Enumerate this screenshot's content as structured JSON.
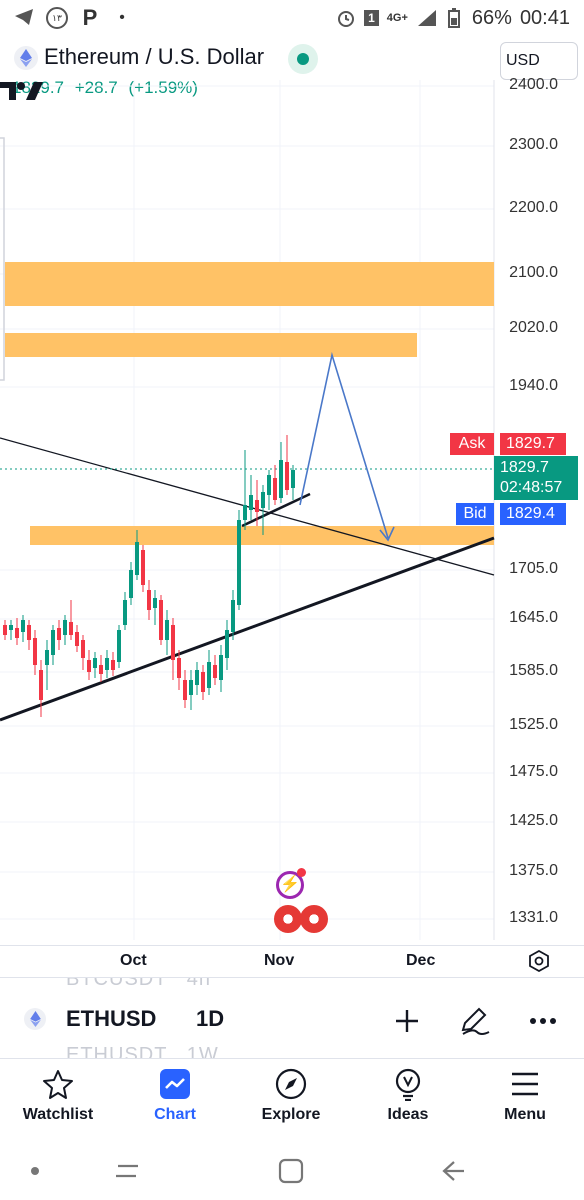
{
  "status_bar": {
    "left_icons": [
      "telegram-icon",
      "notification-icon",
      "p-icon",
      "dot-icon"
    ],
    "left_badge": "١٣",
    "right_icons": [
      "alarm-icon",
      "sim-icon",
      "network-icon",
      "signal-icon",
      "battery-icon"
    ],
    "sim_label": "1",
    "network_label": "4G+",
    "battery": "66%",
    "time": "00:41"
  },
  "header": {
    "title": "Ethereum / U.S. Dollar",
    "currency": "USD",
    "last_price": "1829.7",
    "change": "+28.7",
    "change_pct": "(+1.59%)"
  },
  "chart": {
    "y_labels": [
      "2400.0",
      "2300.0",
      "2200.0",
      "2100.0",
      "2020.0",
      "1940.0",
      "1705.0",
      "1645.0",
      "1585.0",
      "1525.0",
      "1475.0",
      "1425.0",
      "1375.0",
      "1331.0"
    ],
    "ask_label": "Ask",
    "ask_price": "1829.7",
    "last_price": "1829.7",
    "countdown": "02:48:57",
    "bid_label": "Bid",
    "bid_price": "1829.4",
    "colors": {
      "up": "#089981",
      "down": "#f23645",
      "zone": "#ffc266",
      "arrow": "#4a78c9"
    }
  },
  "x_axis": {
    "labels": [
      "Oct",
      "Nov",
      "Dec"
    ]
  },
  "symbol_bar": {
    "ghost_top": "BTCUSDT   4h",
    "ghost_bottom": "ETHUSDT   1W",
    "symbol": "ETHUSD",
    "interval": "1D"
  },
  "bottom_nav": [
    {
      "label": "Watchlist",
      "icon": "star-icon"
    },
    {
      "label": "Chart",
      "icon": "chart-icon"
    },
    {
      "label": "Explore",
      "icon": "compass-icon"
    },
    {
      "label": "Ideas",
      "icon": "lightbulb-icon"
    },
    {
      "label": "Menu",
      "icon": "menu-icon"
    }
  ]
}
